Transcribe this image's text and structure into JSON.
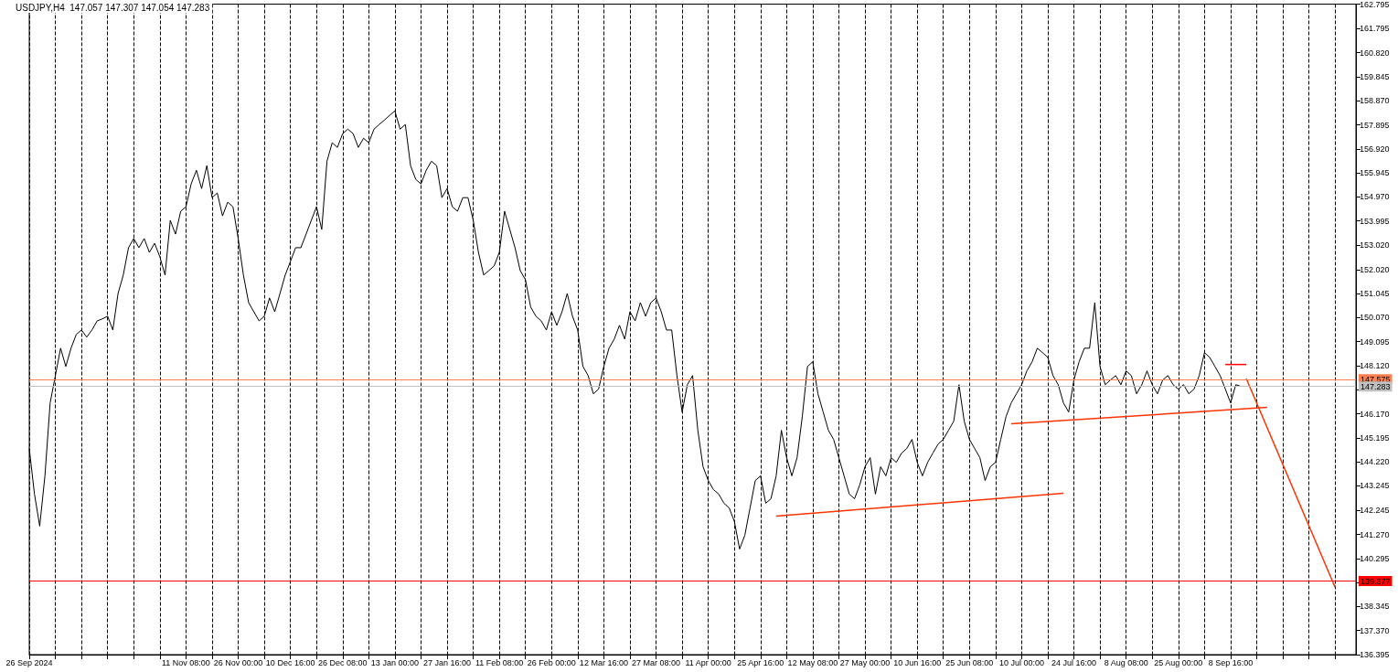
{
  "chart_data": {
    "type": "line",
    "title": "USDJPY,H4  147.057 147.307 147.054 147.283",
    "categories": [
      "26 Sep 2024",
      null,
      null,
      null,
      null,
      null,
      null,
      null,
      null,
      null,
      null,
      null,
      null,
      null,
      null,
      null,
      null,
      null,
      null,
      null,
      null,
      null,
      null,
      null,
      null,
      null,
      null,
      null,
      null,
      null,
      "11 Nov 08:00",
      null,
      null,
      null,
      null,
      null,
      null,
      null,
      null,
      null,
      "26 Nov 00:00",
      null,
      null,
      null,
      null,
      null,
      null,
      null,
      null,
      null,
      "10 Dec 16:00",
      null,
      null,
      null,
      null,
      null,
      null,
      null,
      null,
      null,
      "26 Dec 08:00",
      null,
      null,
      null,
      null,
      null,
      null,
      null,
      null,
      null,
      "13 Jan 00:00",
      null,
      null,
      null,
      null,
      null,
      null,
      null,
      null,
      null,
      "27 Jan 16:00",
      null,
      null,
      null,
      null,
      null,
      null,
      null,
      null,
      null,
      "11 Feb 08:00",
      null,
      null,
      null,
      null,
      null,
      null,
      null,
      null,
      null,
      "26 Feb 00:00",
      null,
      null,
      null,
      null,
      null,
      null,
      null,
      null,
      null,
      "12 Mar 16:00",
      null,
      null,
      null,
      null,
      null,
      null,
      null,
      null,
      null,
      "27 Mar 08:00",
      null,
      null,
      null,
      null,
      null,
      null,
      null,
      null,
      null,
      "11 Apr 00:00",
      null,
      null,
      null,
      null,
      null,
      null,
      null,
      null,
      null,
      "25 Apr 16:00",
      null,
      null,
      null,
      null,
      null,
      null,
      null,
      null,
      null,
      "12 May 08:00",
      null,
      null,
      null,
      null,
      null,
      null,
      null,
      null,
      null,
      "27 May 00:00",
      null,
      null,
      null,
      null,
      null,
      null,
      null,
      null,
      null,
      "10 Jun 16:00",
      null,
      null,
      null,
      null,
      null,
      null,
      null,
      null,
      null,
      "25 Jun 08:00",
      null,
      null,
      null,
      null,
      null,
      null,
      null,
      null,
      null,
      "10 Jul 00:00",
      null,
      null,
      null,
      null,
      null,
      null,
      null,
      null,
      null,
      "24 Jul 16:00",
      null,
      null,
      null,
      null,
      null,
      null,
      null,
      null,
      null,
      "8 Aug 08:00",
      null,
      null,
      null,
      null,
      null,
      null,
      null,
      null,
      null,
      "25 Aug 00:00",
      null,
      null,
      null,
      null,
      null,
      null,
      null,
      null,
      null,
      "8 Sep 16:00",
      null,
      null,
      null,
      null,
      null,
      null,
      null,
      null,
      null,
      null,
      null,
      null,
      null,
      null,
      null,
      null,
      null,
      null,
      null,
      null,
      null,
      null,
      null,
      null
    ],
    "series": [
      {
        "color": "#000000",
        "values": [
          144.76,
          142.91,
          141.61,
          143.65,
          146.61,
          147.72,
          148.83,
          148.09,
          148.83,
          149.39,
          149.57,
          149.28,
          149.57,
          149.94,
          150.02,
          150.13,
          149.57,
          151.05,
          151.8,
          152.91,
          153.28,
          152.91,
          153.28,
          152.72,
          153.09,
          152.54,
          151.8,
          154.02,
          153.46,
          154.39,
          154.57,
          155.5,
          156.05,
          155.31,
          156.24,
          154.94,
          155.13,
          154.2,
          154.76,
          154.57,
          153.28,
          151.8,
          150.68,
          150.31,
          149.94,
          150.13,
          150.87,
          150.31,
          151.05,
          151.8,
          152.35,
          152.91,
          152.91,
          153.46,
          154.02,
          154.57,
          153.65,
          156.42,
          157.17,
          156.98,
          157.54,
          157.72,
          157.54,
          156.98,
          157.35,
          157.17,
          157.72,
          157.91,
          158.09,
          158.28,
          158.46,
          157.72,
          157.91,
          156.24,
          155.68,
          155.5,
          156.05,
          156.42,
          156.24,
          154.94,
          155.31,
          154.57,
          154.39,
          154.94,
          154.94,
          154.02,
          152.72,
          151.8,
          151.98,
          152.17,
          152.72,
          154.39,
          153.65,
          152.91,
          151.98,
          151.61,
          150.5,
          150.13,
          149.94,
          149.57,
          150.31,
          149.76,
          150.31,
          151.05,
          150.13,
          149.57,
          148.09,
          147.72,
          146.98,
          147.17,
          148.09,
          148.83,
          149.2,
          149.76,
          149.2,
          150.31,
          149.94,
          150.68,
          150.13,
          150.68,
          150.87,
          150.31,
          149.57,
          149.57,
          147.72,
          146.24,
          147.35,
          147.72,
          145.5,
          144.02,
          143.46,
          143.09,
          142.91,
          142.54,
          142.35,
          141.8,
          140.68,
          141.24,
          142.35,
          143.46,
          143.65,
          142.54,
          142.72,
          143.65,
          145.5,
          144.39,
          143.65,
          144.39,
          146.05,
          148.09,
          148.28,
          146.98,
          146.24,
          145.5,
          145.13,
          144.39,
          143.65,
          142.91,
          142.72,
          143.28,
          144.02,
          144.39,
          142.91,
          144.02,
          143.65,
          144.39,
          144.2,
          144.57,
          144.76,
          145.13,
          144.2,
          143.65,
          144.2,
          144.57,
          144.94,
          145.13,
          145.5,
          145.87,
          147.35,
          145.87,
          145.13,
          144.76,
          144.39,
          143.46,
          144.02,
          144.2,
          145.13,
          146.05,
          146.61,
          146.98,
          147.35,
          147.91,
          148.28,
          148.83,
          148.65,
          148.46,
          147.72,
          147.35,
          146.61,
          146.24,
          147.54,
          148.28,
          148.83,
          148.83,
          150.68,
          148.09,
          147.35,
          147.54,
          147.72,
          147.35,
          147.91,
          147.72,
          146.98,
          147.35,
          147.91,
          147.35,
          146.98,
          147.54,
          147.72,
          147.35,
          147.17,
          147.35,
          146.98,
          147.17,
          147.72,
          148.65,
          148.46,
          148.09,
          147.72,
          147.17,
          146.61,
          147.35,
          147.28,
          null,
          null,
          null,
          null,
          null,
          null,
          null,
          null,
          null,
          null,
          null,
          null,
          null,
          null,
          null,
          null,
          null,
          null,
          null,
          null,
          null,
          null
        ]
      },
      {
        "type": "line",
        "color": "#ff3300",
        "values": [
          null,
          null,
          null,
          null,
          null,
          null,
          null,
          null,
          null,
          null,
          null,
          null,
          null,
          null,
          null,
          null,
          null,
          null,
          null,
          null,
          null,
          null,
          null,
          null,
          null,
          null,
          null,
          null,
          null,
          null,
          null,
          null,
          null,
          null,
          null,
          null,
          null,
          null,
          null,
          null,
          null,
          null,
          null,
          null,
          null,
          null,
          null,
          null,
          null,
          null,
          null,
          null,
          null,
          null,
          null,
          null,
          null,
          null,
          null,
          null,
          null,
          null,
          null,
          null,
          null,
          null,
          null,
          null,
          null,
          null,
          null,
          null,
          null,
          null,
          null,
          null,
          null,
          null,
          null,
          null,
          null,
          null,
          null,
          null,
          null,
          null,
          null,
          null,
          null,
          null,
          null,
          null,
          null,
          null,
          null,
          null,
          null,
          null,
          null,
          null,
          null,
          null,
          null,
          null,
          null,
          null,
          null,
          null,
          null,
          null,
          null,
          null,
          null,
          null,
          null,
          null,
          null,
          null,
          null,
          null,
          null,
          null,
          null,
          null,
          null,
          null,
          null,
          null,
          null,
          null,
          null,
          null,
          null,
          null,
          null,
          null,
          null,
          null,
          null,
          null,
          null,
          null,
          null,
          142.02,
          null,
          null,
          null,
          null,
          null,
          null,
          null,
          null,
          null,
          null,
          null,
          null,
          null,
          null,
          null,
          null,
          null,
          null,
          null,
          null,
          null,
          null,
          null,
          null,
          null,
          null,
          null,
          null,
          null,
          null,
          null,
          null,
          null,
          null,
          null,
          null,
          null,
          null,
          null,
          null,
          null,
          null,
          null,
          null,
          null,
          null,
          null,
          null,
          null,
          null,
          null,
          null,
          null,
          null,
          142.94,
          null,
          null,
          null,
          null,
          null,
          null,
          null,
          null,
          null,
          null,
          null,
          null,
          null,
          null,
          null,
          null,
          null,
          null,
          null,
          null,
          null,
          null,
          null,
          null,
          null,
          null,
          null,
          null,
          null,
          null,
          null,
          null,
          null,
          null,
          null,
          null,
          null,
          null,
          null,
          null,
          null,
          null,
          null,
          null,
          null,
          null,
          null,
          null,
          null,
          null,
          null,
          null,
          null,
          null,
          null,
          null
        ]
      },
      {
        "type": "line",
        "color": "#ff3300",
        "values": [
          null,
          null,
          null,
          null,
          null,
          null,
          null,
          null,
          null,
          null,
          null,
          null,
          null,
          null,
          null,
          null,
          null,
          null,
          null,
          null,
          null,
          null,
          null,
          null,
          null,
          null,
          null,
          null,
          null,
          null,
          null,
          null,
          null,
          null,
          null,
          null,
          null,
          null,
          null,
          null,
          null,
          null,
          null,
          null,
          null,
          null,
          null,
          null,
          null,
          null,
          null,
          null,
          null,
          null,
          null,
          null,
          null,
          null,
          null,
          null,
          null,
          null,
          null,
          null,
          null,
          null,
          null,
          null,
          null,
          null,
          null,
          null,
          null,
          null,
          null,
          null,
          null,
          null,
          null,
          null,
          null,
          null,
          null,
          null,
          null,
          null,
          null,
          null,
          null,
          null,
          null,
          null,
          null,
          null,
          null,
          null,
          null,
          null,
          null,
          null,
          null,
          null,
          null,
          null,
          null,
          null,
          null,
          null,
          null,
          null,
          null,
          null,
          null,
          null,
          null,
          null,
          null,
          null,
          null,
          null,
          null,
          null,
          null,
          null,
          null,
          null,
          null,
          null,
          null,
          null,
          null,
          null,
          null,
          null,
          null,
          null,
          null,
          null,
          null,
          null,
          null,
          null,
          null,
          null,
          null,
          null,
          null,
          null,
          null,
          null,
          null,
          null,
          null,
          null,
          null,
          null,
          null,
          null,
          null,
          null,
          null,
          null,
          null,
          null,
          null,
          null,
          null,
          null,
          null,
          null,
          null,
          null,
          null,
          null,
          null,
          null,
          null,
          null,
          null,
          null,
          null,
          null,
          null,
          null,
          null,
          null,
          null,
          null,
          145.76,
          null,
          null,
          null,
          null,
          null,
          null,
          null,
          null,
          null,
          null,
          null,
          null,
          null,
          null,
          null,
          null,
          null,
          null,
          null,
          null,
          null,
          null,
          null,
          null,
          null,
          null,
          null,
          null,
          null,
          null,
          null,
          null,
          null,
          null,
          null,
          null,
          null,
          null,
          null,
          null,
          null,
          null,
          null,
          null,
          null,
          null,
          null,
          null,
          146.43,
          null,
          null,
          null,
          null,
          null,
          null,
          null,
          null,
          null,
          null,
          null,
          null,
          null,
          null,
          null,
          null,
          null
        ]
      },
      {
        "type": "line",
        "color": "#ff3300",
        "values": [
          null,
          null,
          null,
          null,
          null,
          null,
          null,
          null,
          null,
          null,
          null,
          null,
          null,
          null,
          null,
          null,
          null,
          null,
          null,
          null,
          null,
          null,
          null,
          null,
          null,
          null,
          null,
          null,
          null,
          null,
          null,
          null,
          null,
          null,
          null,
          null,
          null,
          null,
          null,
          null,
          null,
          null,
          null,
          null,
          null,
          null,
          null,
          null,
          null,
          null,
          null,
          null,
          null,
          null,
          null,
          null,
          null,
          null,
          null,
          null,
          null,
          null,
          null,
          null,
          null,
          null,
          null,
          null,
          null,
          null,
          null,
          null,
          null,
          null,
          null,
          null,
          null,
          null,
          null,
          null,
          null,
          null,
          null,
          null,
          null,
          null,
          null,
          null,
          null,
          null,
          null,
          null,
          null,
          null,
          null,
          null,
          null,
          null,
          null,
          null,
          null,
          null,
          null,
          null,
          null,
          null,
          null,
          null,
          null,
          null,
          null,
          null,
          null,
          null,
          null,
          null,
          null,
          null,
          null,
          null,
          null,
          null,
          null,
          null,
          null,
          null,
          null,
          null,
          null,
          null,
          null,
          null,
          null,
          null,
          null,
          null,
          null,
          null,
          null,
          null,
          null,
          null,
          null,
          null,
          null,
          null,
          null,
          null,
          null,
          null,
          null,
          null,
          null,
          null,
          null,
          null,
          null,
          null,
          null,
          null,
          null,
          null,
          null,
          null,
          null,
          null,
          null,
          null,
          null,
          null,
          null,
          null,
          null,
          null,
          null,
          null,
          null,
          null,
          null,
          null,
          null,
          null,
          null,
          null,
          null,
          null,
          null,
          null,
          null,
          null,
          null,
          null,
          null,
          null,
          null,
          null,
          null,
          null,
          null,
          null,
          null,
          null,
          null,
          null,
          null,
          null,
          null,
          null,
          null,
          null,
          null,
          null,
          null,
          null,
          null,
          null,
          null,
          null,
          null,
          null,
          null,
          null,
          null,
          null,
          null,
          null,
          null,
          null,
          null,
          null,
          null,
          null,
          null,
          147.6,
          null,
          null,
          null,
          null,
          null,
          null,
          null,
          null,
          null,
          null,
          null,
          null,
          null,
          null,
          null,
          null,
          139.13,
          null,
          null,
          null,
          null
        ]
      },
      {
        "type": "line",
        "color": "#ff0000",
        "values": [
          null,
          null,
          null,
          null,
          null,
          null,
          null,
          null,
          null,
          null,
          null,
          null,
          null,
          null,
          null,
          null,
          null,
          null,
          null,
          null,
          null,
          null,
          null,
          null,
          null,
          null,
          null,
          null,
          null,
          null,
          null,
          null,
          null,
          null,
          null,
          null,
          null,
          null,
          null,
          null,
          null,
          null,
          null,
          null,
          null,
          null,
          null,
          null,
          null,
          null,
          null,
          null,
          null,
          null,
          null,
          null,
          null,
          null,
          null,
          null,
          null,
          null,
          null,
          null,
          null,
          null,
          null,
          null,
          null,
          null,
          null,
          null,
          null,
          null,
          null,
          null,
          null,
          null,
          null,
          null,
          null,
          null,
          null,
          null,
          null,
          null,
          null,
          null,
          null,
          null,
          null,
          null,
          null,
          null,
          null,
          null,
          null,
          null,
          null,
          null,
          null,
          null,
          null,
          null,
          null,
          null,
          null,
          null,
          null,
          null,
          null,
          null,
          null,
          null,
          null,
          null,
          null,
          null,
          null,
          null,
          null,
          null,
          null,
          null,
          null,
          null,
          null,
          null,
          null,
          null,
          null,
          null,
          null,
          null,
          null,
          null,
          null,
          null,
          null,
          null,
          null,
          null,
          null,
          null,
          null,
          null,
          null,
          null,
          null,
          null,
          null,
          null,
          null,
          null,
          null,
          null,
          null,
          null,
          null,
          null,
          null,
          null,
          null,
          null,
          null,
          null,
          null,
          null,
          null,
          null,
          null,
          null,
          null,
          null,
          null,
          null,
          null,
          null,
          null,
          null,
          null,
          null,
          null,
          null,
          null,
          null,
          null,
          null,
          null,
          null,
          null,
          null,
          null,
          null,
          null,
          null,
          null,
          null,
          null,
          null,
          null,
          null,
          null,
          null,
          null,
          null,
          null,
          null,
          null,
          null,
          null,
          null,
          null,
          null,
          null,
          null,
          null,
          null,
          null,
          null,
          null,
          null,
          null,
          null,
          null,
          null,
          null,
          null,
          null,
          148.17,
          null,
          null,
          null,
          148.17,
          null,
          null,
          null,
          null,
          null,
          null,
          null,
          null,
          null,
          null,
          null,
          null,
          null,
          null,
          null,
          null,
          null,
          null,
          null,
          null,
          null
        ]
      }
    ],
    "ylim": [
      136.395,
      162.795
    ],
    "yticks": [
      162.795,
      161.795,
      {
        "value": 160.82,
        "label": "160.820"
      },
      159.845,
      {
        "value": 158.87,
        "label": "158.870"
      },
      157.895,
      {
        "value": 156.92,
        "label": "156.920"
      },
      155.945,
      {
        "value": 154.97,
        "label": "154.970"
      },
      153.995,
      {
        "value": 153.02,
        "label": "153.020"
      },
      {
        "value": 152.02,
        "label": "152.020"
      },
      151.045,
      {
        "value": 150.07,
        "label": "150.070"
      },
      149.095,
      {
        "value": 148.12,
        "label": "148.120"
      },
      {
        "value": 147.145,
        "label": null
      },
      {
        "value": 146.17,
        "label": "146.170"
      },
      145.195,
      {
        "value": 144.22,
        "label": "144.220"
      },
      143.245,
      142.245,
      {
        "value": 141.27,
        "label": "141.270"
      },
      140.295,
      {
        "value": 139.32,
        "label": null
      },
      138.345,
      {
        "value": 137.37,
        "label": "137.370"
      },
      136.395
    ],
    "ref_lines": [
      {
        "axis": "y",
        "value": 147.575,
        "label": "147.575",
        "color": "#ff7f50"
      },
      {
        "axis": "y",
        "value": 147.283,
        "label": "147.283",
        "color": "#c0c0c0"
      },
      {
        "axis": "y",
        "value": 139.377,
        "label": "139.377",
        "color": "#ff0000"
      }
    ],
    "grid": "x"
  }
}
